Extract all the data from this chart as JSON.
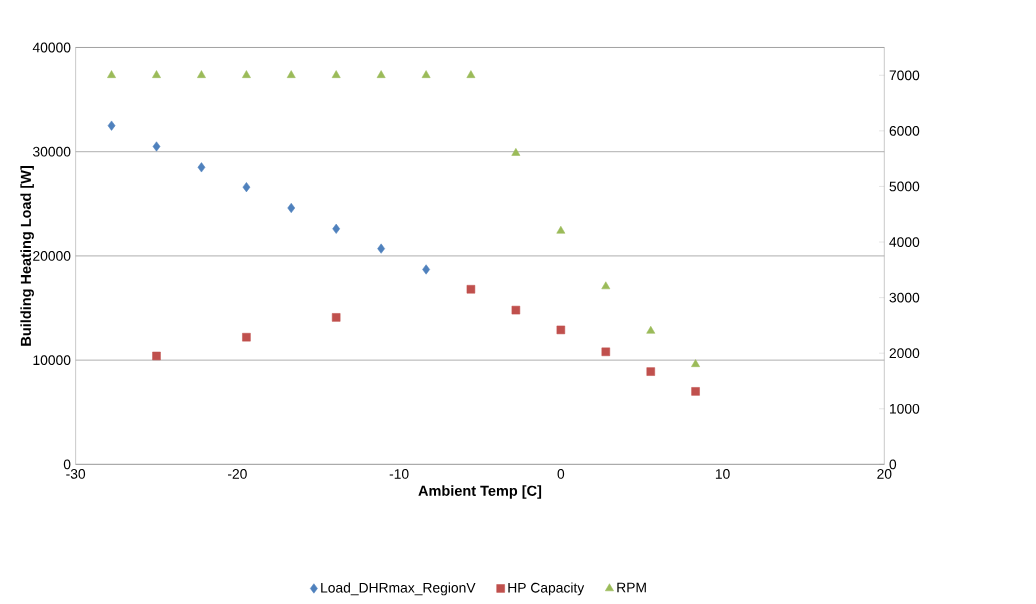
{
  "chart_data": {
    "type": "scatter",
    "xlabel": "Ambient Temp [C]",
    "ylabel": "Building Heating Load [W]",
    "xlim": [
      -30,
      20
    ],
    "xticks": [
      -30,
      -20,
      -10,
      0,
      10,
      20
    ],
    "ylim": [
      0,
      40000
    ],
    "yticks": [
      0,
      10000,
      20000,
      30000,
      40000
    ],
    "y2lim": [
      0,
      7500
    ],
    "y2ticks": [
      0,
      1000,
      2000,
      3000,
      4000,
      5000,
      6000,
      7000
    ],
    "grid": "y",
    "legend": "bottom",
    "series": [
      {
        "name": "Load_DHRmax_RegionV",
        "color": "#4f81bd",
        "marker": "diamond",
        "x": [
          -27.78,
          -25,
          -22.22,
          -19.44,
          -16.67,
          -13.89,
          -11.11,
          -8.33
        ],
        "values": [
          32500,
          30500,
          28500,
          26600,
          24600,
          22600,
          20700,
          18700
        ]
      },
      {
        "name": "HP Capacity",
        "color": "#c0504d",
        "marker": "square",
        "x": [
          -25,
          -19.44,
          -13.89,
          -5.56,
          -2.78,
          0,
          2.78,
          5.56,
          8.33
        ],
        "values": [
          10400,
          12200,
          14100,
          16800,
          14800,
          12900,
          10800,
          8900,
          7000
        ]
      },
      {
        "name": "RPM",
        "color": "#9bbb59",
        "marker": "triangle",
        "axis": "y2",
        "x": [
          -27.78,
          -25,
          -22.22,
          -19.44,
          -16.67,
          -13.89,
          -11.11,
          -8.33,
          -5.56,
          -2.78,
          0,
          2.78,
          5.56,
          8.33
        ],
        "values": [
          7000,
          7000,
          7000,
          7000,
          7000,
          7000,
          7000,
          7000,
          7000,
          5600,
          4200,
          3200,
          2400,
          1800
        ]
      }
    ]
  }
}
